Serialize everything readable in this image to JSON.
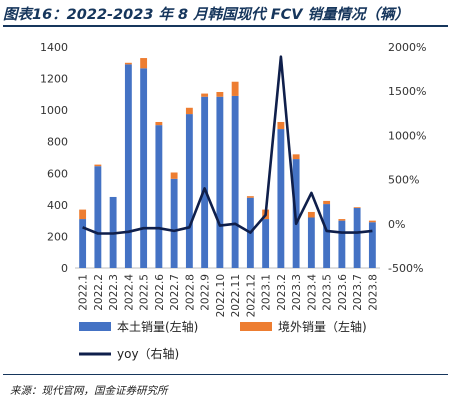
{
  "title": "图表16：2022-2023 年 8 月韩国现代 FCV 销量情况（辆）",
  "source": "来源：现代官网，国金证券研究所",
  "chart_data": {
    "type": "bar",
    "stacked": true,
    "categories": [
      "2022.1",
      "2022.2",
      "2022.3",
      "2022.4",
      "2022.5",
      "2022.6",
      "2022.7",
      "2022.8",
      "2022.9",
      "2022.10",
      "2022.11",
      "2022.12",
      "2023.1",
      "2023.2",
      "2023.3",
      "2023.4",
      "2023.5",
      "2023.6",
      "2023.7",
      "2023.8"
    ],
    "series": [
      {
        "name": "本土销量(左轴)",
        "type": "bar",
        "axis": "left",
        "color": "#4472c4",
        "values": [
          310,
          645,
          450,
          1290,
          1265,
          905,
          565,
          975,
          1085,
          1085,
          1090,
          445,
          310,
          880,
          690,
          320,
          405,
          300,
          380,
          290
        ]
      },
      {
        "name": "境外销量（左轴)",
        "type": "bar",
        "axis": "left",
        "color": "#ed7d31",
        "values": [
          60,
          10,
          0,
          10,
          65,
          20,
          40,
          40,
          20,
          30,
          90,
          10,
          60,
          45,
          30,
          35,
          20,
          10,
          5,
          10
        ]
      },
      {
        "name": "yoy（右轴)",
        "type": "line",
        "axis": "right",
        "color": "#0f1f4b",
        "values": [
          -40,
          -110,
          -110,
          -90,
          -50,
          -50,
          -80,
          -40,
          400,
          -20,
          0,
          -100,
          100,
          1890,
          0,
          350,
          -80,
          -100,
          -100,
          -80
        ]
      }
    ],
    "y_left": {
      "range": [
        0,
        1400
      ],
      "ticks": [
        0,
        200,
        400,
        600,
        800,
        1000,
        1200,
        1400
      ]
    },
    "y_right": {
      "range": [
        -500,
        2000
      ],
      "ticks": [
        -500,
        0,
        500,
        1000,
        1500,
        2000
      ],
      "tick_labels": [
        "-500%",
        "0%",
        "500%",
        "1000%",
        "1500%",
        "2000%"
      ]
    },
    "grid": false,
    "legend_position": "bottom"
  }
}
